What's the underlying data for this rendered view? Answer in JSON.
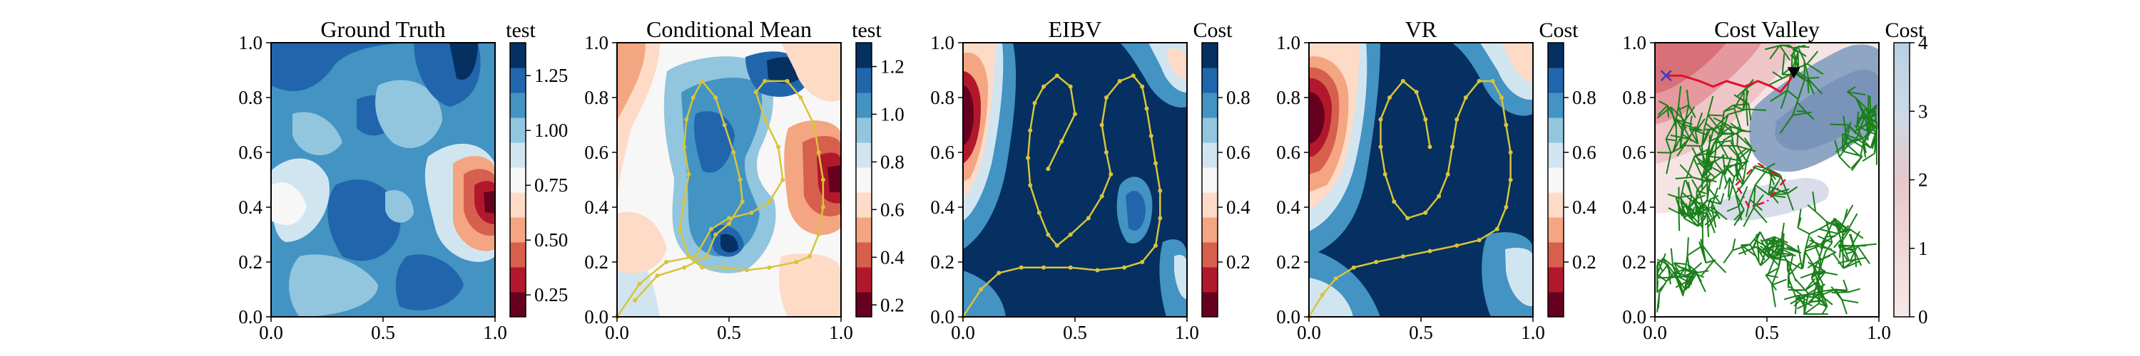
{
  "colors": {
    "rdbu": [
      "#67001f",
      "#b2182b",
      "#d6604d",
      "#f4a582",
      "#fddbc7",
      "#f7f7f7",
      "#d1e5f0",
      "#92c5de",
      "#4393c3",
      "#2166ac",
      "#053061"
    ],
    "path_yellow": "#d8c43a",
    "tree_green": "#1a7f1a",
    "route_red": "#e0102a",
    "target_black": "#000000",
    "start_blue": "#3a3ad0",
    "cost_map_low": "#ffffff",
    "cost_map_high": "#c8404a",
    "cost_map_blue": "#8ea6c4"
  },
  "chart_data": [
    {
      "type": "heatmap",
      "title": "Ground Truth",
      "colorbar_title": "test",
      "xlim": [
        0,
        1
      ],
      "ylim": [
        0,
        1
      ],
      "xticks": [
        0.0,
        0.5,
        1.0
      ],
      "xtick_labels": [
        "0.0",
        "0.5",
        "1.0"
      ],
      "yticks": [
        0.0,
        0.2,
        0.4,
        0.6,
        0.8,
        1.0
      ],
      "ytick_labels": [
        "0.0",
        "0.2",
        "0.4",
        "0.6",
        "0.8",
        "1.0"
      ],
      "colorbar_range": [
        0.15,
        1.4
      ],
      "colorbar_ticks": [
        0.25,
        0.5,
        0.75,
        1.0,
        1.25
      ],
      "colorbar_tick_labels": [
        "0.25",
        "0.50",
        "0.75",
        "1.00",
        "1.25"
      ],
      "colormap": "RdBu",
      "levels": 11
    },
    {
      "type": "heatmap",
      "title": "Conditional Mean",
      "colorbar_title": "test",
      "xlim": [
        0,
        1
      ],
      "ylim": [
        0,
        1
      ],
      "xticks": [
        0.0,
        0.5,
        1.0
      ],
      "xtick_labels": [
        "0.0",
        "0.5",
        "1.0"
      ],
      "yticks": [
        0.0,
        0.2,
        0.4,
        0.6,
        0.8,
        1.0
      ],
      "ytick_labels": [
        "0.0",
        "0.2",
        "0.4",
        "0.6",
        "0.8",
        "1.0"
      ],
      "colorbar_range": [
        0.15,
        1.3
      ],
      "colorbar_ticks": [
        0.2,
        0.4,
        0.6,
        0.8,
        1.0,
        1.2
      ],
      "colorbar_tick_labels": [
        "0.2",
        "0.4",
        "0.6",
        "0.8",
        "1.0",
        "1.2"
      ],
      "colormap": "RdBu",
      "levels": 11,
      "path": {
        "color": "yellow",
        "points": [
          [
            0.0,
            0.0
          ],
          [
            0.1,
            0.12
          ],
          [
            0.22,
            0.2
          ],
          [
            0.35,
            0.22
          ],
          [
            0.42,
            0.32
          ],
          [
            0.5,
            0.36
          ],
          [
            0.6,
            0.38
          ],
          [
            0.68,
            0.42
          ],
          [
            0.74,
            0.5
          ],
          [
            0.72,
            0.62
          ],
          [
            0.66,
            0.72
          ],
          [
            0.62,
            0.82
          ],
          [
            0.66,
            0.86
          ],
          [
            0.76,
            0.86
          ],
          [
            0.82,
            0.8
          ],
          [
            0.88,
            0.7
          ],
          [
            0.9,
            0.6
          ],
          [
            0.92,
            0.5
          ],
          [
            0.92,
            0.4
          ],
          [
            0.9,
            0.3
          ],
          [
            0.86,
            0.22
          ],
          [
            0.8,
            0.2
          ],
          [
            0.68,
            0.18
          ],
          [
            0.58,
            0.17
          ],
          [
            0.48,
            0.18
          ],
          [
            0.38,
            0.18
          ],
          [
            0.32,
            0.22
          ],
          [
            0.28,
            0.32
          ],
          [
            0.3,
            0.42
          ],
          [
            0.32,
            0.52
          ],
          [
            0.3,
            0.62
          ],
          [
            0.31,
            0.72
          ],
          [
            0.34,
            0.8
          ],
          [
            0.38,
            0.86
          ],
          [
            0.44,
            0.8
          ],
          [
            0.48,
            0.7
          ],
          [
            0.52,
            0.6
          ],
          [
            0.55,
            0.5
          ],
          [
            0.56,
            0.42
          ],
          [
            0.5,
            0.34
          ],
          [
            0.44,
            0.3
          ],
          [
            0.4,
            0.22
          ],
          [
            0.3,
            0.18
          ],
          [
            0.18,
            0.15
          ],
          [
            0.08,
            0.06
          ]
        ]
      }
    },
    {
      "type": "heatmap",
      "title": "EIBV",
      "colorbar_title": "Cost",
      "xlim": [
        0,
        1
      ],
      "ylim": [
        0,
        1
      ],
      "xticks": [
        0.0,
        0.5,
        1.0
      ],
      "xtick_labels": [
        "0.0",
        "0.5",
        "1.0"
      ],
      "yticks": [
        0.0,
        0.2,
        0.4,
        0.6,
        0.8,
        1.0
      ],
      "ytick_labels": [
        "0.0",
        "0.2",
        "0.4",
        "0.6",
        "0.8",
        "1.0"
      ],
      "colorbar_range": [
        0.0,
        1.0
      ],
      "colorbar_ticks": [
        0.2,
        0.4,
        0.6,
        0.8
      ],
      "colorbar_tick_labels": [
        "0.2",
        "0.4",
        "0.6",
        "0.8"
      ],
      "colormap": "RdBu",
      "levels": 11,
      "path": {
        "color": "yellow",
        "points": [
          [
            0.0,
            0.0
          ],
          [
            0.08,
            0.1
          ],
          [
            0.16,
            0.16
          ],
          [
            0.26,
            0.18
          ],
          [
            0.36,
            0.18
          ],
          [
            0.48,
            0.18
          ],
          [
            0.6,
            0.17
          ],
          [
            0.72,
            0.18
          ],
          [
            0.8,
            0.2
          ],
          [
            0.86,
            0.26
          ],
          [
            0.88,
            0.36
          ],
          [
            0.88,
            0.46
          ],
          [
            0.86,
            0.56
          ],
          [
            0.84,
            0.66
          ],
          [
            0.82,
            0.76
          ],
          [
            0.8,
            0.84
          ],
          [
            0.76,
            0.88
          ],
          [
            0.7,
            0.86
          ],
          [
            0.64,
            0.8
          ],
          [
            0.62,
            0.7
          ],
          [
            0.64,
            0.6
          ],
          [
            0.66,
            0.52
          ],
          [
            0.62,
            0.44
          ],
          [
            0.56,
            0.36
          ],
          [
            0.48,
            0.3
          ],
          [
            0.42,
            0.26
          ],
          [
            0.38,
            0.3
          ],
          [
            0.34,
            0.38
          ],
          [
            0.3,
            0.48
          ],
          [
            0.29,
            0.58
          ],
          [
            0.3,
            0.68
          ],
          [
            0.32,
            0.78
          ],
          [
            0.36,
            0.84
          ],
          [
            0.42,
            0.88
          ],
          [
            0.48,
            0.84
          ],
          [
            0.5,
            0.74
          ],
          [
            0.44,
            0.64
          ],
          [
            0.38,
            0.54
          ]
        ]
      }
    },
    {
      "type": "heatmap",
      "title": "VR",
      "colorbar_title": "Cost",
      "xlim": [
        0,
        1
      ],
      "ylim": [
        0,
        1
      ],
      "xticks": [
        0.0,
        0.5,
        1.0
      ],
      "xtick_labels": [
        "0.0",
        "0.5",
        "1.0"
      ],
      "yticks": [
        0.0,
        0.2,
        0.4,
        0.6,
        0.8,
        1.0
      ],
      "ytick_labels": [
        "0.0",
        "0.2",
        "0.4",
        "0.6",
        "0.8",
        "1.0"
      ],
      "colorbar_range": [
        0.0,
        1.0
      ],
      "colorbar_ticks": [
        0.2,
        0.4,
        0.6,
        0.8
      ],
      "colorbar_tick_labels": [
        "0.2",
        "0.4",
        "0.6",
        "0.8"
      ],
      "colormap": "RdBu",
      "levels": 11,
      "path": {
        "color": "yellow",
        "points": [
          [
            0.0,
            0.0
          ],
          [
            0.06,
            0.08
          ],
          [
            0.12,
            0.14
          ],
          [
            0.2,
            0.18
          ],
          [
            0.3,
            0.2
          ],
          [
            0.42,
            0.22
          ],
          [
            0.54,
            0.24
          ],
          [
            0.66,
            0.26
          ],
          [
            0.76,
            0.28
          ],
          [
            0.84,
            0.32
          ],
          [
            0.88,
            0.4
          ],
          [
            0.9,
            0.5
          ],
          [
            0.9,
            0.6
          ],
          [
            0.88,
            0.7
          ],
          [
            0.86,
            0.8
          ],
          [
            0.82,
            0.86
          ],
          [
            0.76,
            0.86
          ],
          [
            0.7,
            0.8
          ],
          [
            0.66,
            0.72
          ],
          [
            0.64,
            0.62
          ],
          [
            0.62,
            0.52
          ],
          [
            0.58,
            0.44
          ],
          [
            0.52,
            0.38
          ],
          [
            0.44,
            0.36
          ],
          [
            0.38,
            0.42
          ],
          [
            0.34,
            0.52
          ],
          [
            0.32,
            0.62
          ],
          [
            0.32,
            0.72
          ],
          [
            0.36,
            0.8
          ],
          [
            0.42,
            0.86
          ],
          [
            0.48,
            0.82
          ],
          [
            0.52,
            0.72
          ],
          [
            0.54,
            0.62
          ]
        ]
      }
    },
    {
      "type": "heatmap",
      "title": "Cost Valley",
      "colorbar_title": "Cost",
      "xlim": [
        0,
        1
      ],
      "ylim": [
        0,
        1
      ],
      "xticks": [
        0.0,
        0.5,
        1.0
      ],
      "xtick_labels": [
        "0.0",
        "0.5",
        "1.0"
      ],
      "yticks": [
        0.0,
        0.2,
        0.4,
        0.6,
        0.8,
        1.0
      ],
      "ytick_labels": [
        "0.0",
        "0.2",
        "0.4",
        "0.6",
        "0.8",
        "1.0"
      ],
      "colorbar_range": [
        0,
        4
      ],
      "colorbar_ticks": [
        0,
        1,
        2,
        3,
        4
      ],
      "colorbar_tick_labels": [
        "0",
        "1",
        "2",
        "3",
        "4"
      ],
      "colormap": "white-to-red",
      "route": [
        [
          0.05,
          0.88
        ],
        [
          0.12,
          0.88
        ],
        [
          0.2,
          0.86
        ],
        [
          0.26,
          0.84
        ],
        [
          0.32,
          0.86
        ],
        [
          0.4,
          0.84
        ],
        [
          0.46,
          0.86
        ],
        [
          0.52,
          0.84
        ],
        [
          0.56,
          0.82
        ],
        [
          0.6,
          0.86
        ],
        [
          0.62,
          0.89
        ]
      ],
      "target": [
        0.62,
        0.89
      ],
      "start": [
        0.05,
        0.88
      ],
      "budget_polygon": [
        [
          0.36,
          0.48
        ],
        [
          0.46,
          0.56
        ],
        [
          0.58,
          0.5
        ],
        [
          0.5,
          0.42
        ],
        [
          0.42,
          0.4
        ],
        [
          0.38,
          0.46
        ]
      ]
    }
  ]
}
